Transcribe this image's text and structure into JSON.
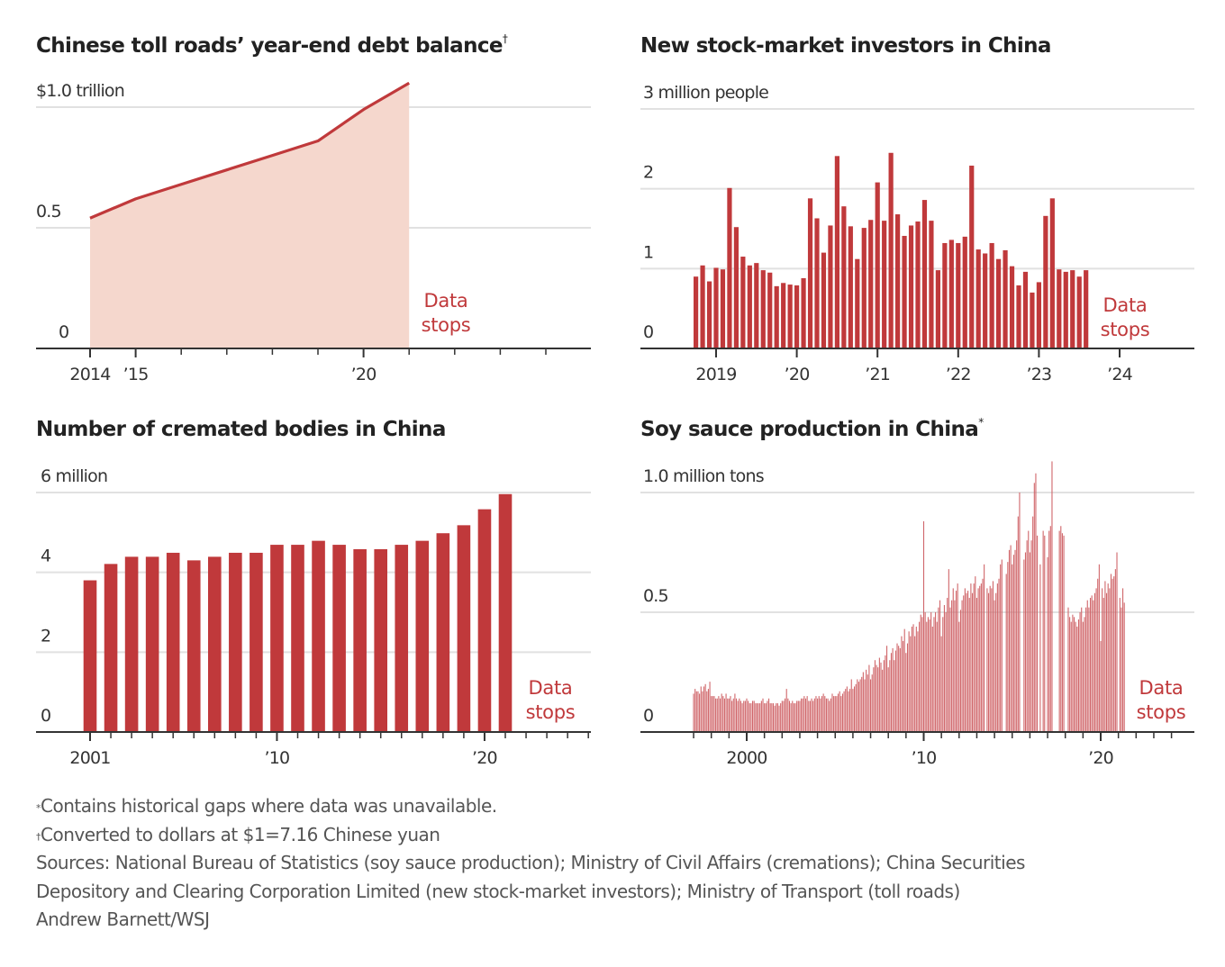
{
  "colors": {
    "bar": "#c0393b",
    "line": "#c0393b",
    "area": "#f5d7cd",
    "grid": "#e1e1e1",
    "axis": "#333333",
    "soy_bar": "#d0666a"
  },
  "chart_data": [
    {
      "id": "toll",
      "type": "area",
      "title": "Chinese toll roads’ year-end debt balance",
      "title_mark": "†",
      "unit_label": "$1.0 trillion",
      "ylabel": "",
      "xlabel": "",
      "ylim": [
        0,
        1.0
      ],
      "yticks": [
        {
          "v": 0,
          "label": "0"
        },
        {
          "v": 0.5,
          "label": "0.5"
        },
        {
          "v": 1.0,
          "label": "$1.0 trillion"
        }
      ],
      "xlim": [
        2014,
        2025
      ],
      "xticks": [
        {
          "v": 2014,
          "label": "2014"
        },
        {
          "v": 2015,
          "label": "’15"
        },
        {
          "v": 2020,
          "label": "’20"
        }
      ],
      "minor_ticks": [
        2016,
        2017,
        2018,
        2019,
        2021,
        2022,
        2023,
        2024
      ],
      "x": [
        2014,
        2015,
        2016,
        2017,
        2018,
        2019,
        2020,
        2021
      ],
      "values": [
        0.54,
        0.62,
        0.68,
        0.74,
        0.8,
        0.86,
        0.99,
        1.1
      ],
      "annotation": [
        "Data",
        "stops"
      ]
    },
    {
      "id": "stock",
      "type": "bar",
      "title": "New stock-market investors in China",
      "title_mark": "",
      "unit_label": "3 million people",
      "ylim": [
        0,
        3
      ],
      "yticks": [
        {
          "v": 0,
          "label": "0"
        },
        {
          "v": 1,
          "label": "1"
        },
        {
          "v": 2,
          "label": "2"
        },
        {
          "v": 3,
          "label": "3 million people"
        }
      ],
      "xlim": [
        2017.85,
        2024.95
      ],
      "xticks": [
        {
          "v": 2019,
          "label": "2019"
        },
        {
          "v": 2020,
          "label": "’20"
        },
        {
          "v": 2021,
          "label": "’21"
        },
        {
          "v": 2022,
          "label": "’22"
        },
        {
          "v": 2023,
          "label": "’23"
        },
        {
          "v": 2024,
          "label": "’24"
        }
      ],
      "start": "2018-10",
      "frequency": "monthly",
      "values": [
        0.9,
        1.04,
        0.84,
        1.01,
        0.99,
        2.01,
        1.52,
        1.15,
        1.04,
        1.07,
        0.98,
        0.95,
        0.78,
        0.82,
        0.8,
        0.79,
        0.88,
        1.88,
        1.63,
        1.2,
        1.54,
        2.41,
        1.78,
        1.53,
        1.12,
        1.51,
        1.61,
        2.08,
        1.6,
        2.45,
        1.68,
        1.41,
        1.54,
        1.59,
        1.86,
        1.6,
        0.98,
        1.32,
        1.36,
        1.32,
        1.4,
        2.29,
        1.24,
        1.19,
        1.32,
        1.12,
        1.23,
        1.03,
        0.79,
        0.96,
        0.7,
        0.83,
        1.66,
        1.88,
        0.99,
        0.96,
        0.98,
        0.9,
        0.98
      ],
      "annotation": [
        "Data",
        "stops"
      ]
    },
    {
      "id": "cremation",
      "type": "bar",
      "title": "Number of cremated bodies in China",
      "title_mark": "",
      "unit_label": "6 million",
      "ylim": [
        0,
        6
      ],
      "yticks": [
        {
          "v": 0,
          "label": "0"
        },
        {
          "v": 2,
          "label": "2"
        },
        {
          "v": 4,
          "label": "4"
        },
        {
          "v": 6,
          "label": "6 million"
        }
      ],
      "xlim": [
        1998.4,
        2025.2
      ],
      "xticks": [
        {
          "v": 2001,
          "label": "2001"
        },
        {
          "v": 2010,
          "label": "’10"
        },
        {
          "v": 2020,
          "label": "’20"
        }
      ],
      "x": [
        2001,
        2002,
        2003,
        2004,
        2005,
        2006,
        2007,
        2008,
        2009,
        2010,
        2011,
        2012,
        2013,
        2014,
        2015,
        2016,
        2017,
        2018,
        2019,
        2020,
        2021
      ],
      "values": [
        3.8,
        4.21,
        4.39,
        4.39,
        4.49,
        4.3,
        4.39,
        4.49,
        4.49,
        4.69,
        4.69,
        4.79,
        4.69,
        4.58,
        4.58,
        4.69,
        4.79,
        4.98,
        5.18,
        5.58,
        5.96
      ],
      "annotation": [
        "Data",
        "stops"
      ]
    },
    {
      "id": "soy",
      "type": "bar",
      "title": "Soy sauce production in China",
      "title_mark": "*",
      "unit_label": "1.0 million tons",
      "ylim": [
        0,
        1.0
      ],
      "yticks": [
        {
          "v": 0,
          "label": "0"
        },
        {
          "v": 0.5,
          "label": "0.5"
        },
        {
          "v": 1.0,
          "label": "1.0 million tons"
        }
      ],
      "xlim": [
        1994.0,
        2025.0
      ],
      "xticks": [
        {
          "v": 2000,
          "label": "2000"
        },
        {
          "v": 2010,
          "label": "’10"
        },
        {
          "v": 2020,
          "label": "’20"
        }
      ],
      "frequency": "monthly",
      "yearly_monthly_values": {
        "1997": [
          0.16,
          0.18,
          0.17,
          0.17,
          0.16,
          0.19,
          0.17,
          0.19,
          0.2,
          0.17,
          0.18,
          0.21
        ],
        "1998": [
          0.15,
          0.15,
          0.15,
          0.14,
          0.14,
          0.15,
          0.14,
          0.16,
          0.15,
          0.14,
          0.16,
          0.14
        ],
        "1999": [
          0.14,
          0.15,
          0.13,
          0.14,
          0.16,
          0.14,
          0.13,
          0.14,
          0.13,
          0.12,
          0.13,
          0.13
        ],
        "2000": [
          0.14,
          0.13,
          0.12,
          0.12,
          0.13,
          0.13,
          0.12,
          0.12,
          0.12,
          0.12,
          0.13,
          0.14
        ],
        "2001": [
          0.12,
          0.12,
          0.13,
          0.14,
          0.12,
          0.12,
          0.12,
          0.11,
          0.12,
          0.12,
          0.11,
          0.12
        ],
        "2002": [
          0.13,
          0.13,
          0.14,
          0.18,
          0.14,
          0.13,
          0.12,
          0.13,
          0.12,
          0.12,
          0.13,
          0.13
        ],
        "2003": [
          0.13,
          0.14,
          0.14,
          0.15,
          0.14,
          0.15,
          0.13,
          0.13,
          0.14,
          0.13,
          0.14,
          0.15
        ],
        "2004": [
          0.14,
          0.15,
          0.14,
          0.15,
          0.16,
          0.15,
          0.14,
          0.14,
          0.13,
          0.14,
          0.16,
          0.15
        ],
        "2005": [
          0.15,
          0.15,
          0.16,
          0.17,
          0.15,
          0.16,
          0.17,
          0.18,
          0.19,
          0.17,
          0.18,
          0.22
        ],
        "2006": [
          0.18,
          0.19,
          0.2,
          0.22,
          0.21,
          0.22,
          0.23,
          0.25,
          0.22,
          0.26,
          0.24,
          0.28
        ],
        "2007": [
          0.22,
          0.24,
          0.27,
          0.3,
          0.28,
          0.27,
          0.31,
          0.29,
          0.26,
          0.3,
          0.32,
          0.36
        ],
        "2008": [
          0.27,
          0.3,
          0.33,
          0.35,
          0.3,
          0.34,
          0.37,
          0.36,
          0.35,
          0.4,
          0.38,
          0.43
        ],
        "2009": [
          0.33,
          0.37,
          0.42,
          0.4,
          0.44,
          0.45,
          0.4,
          0.44,
          0.42,
          0.46,
          0.49,
          0.48
        ],
        "2010": [
          0.88,
          0.5,
          0.46,
          0.48,
          0.47,
          0.5,
          0.44,
          0.48,
          0.5,
          0.46,
          0.52,
          0.55
        ],
        "2011": [
          0.4,
          0.48,
          0.53,
          0.5,
          0.56,
          0.68,
          0.52,
          0.55,
          0.6,
          0.55,
          0.59,
          0.62
        ],
        "2012": [
          0.46,
          0.51,
          0.55,
          0.57,
          0.6,
          0.58,
          0.59,
          0.56,
          0.62,
          0.58,
          0.62,
          0.65
        ],
        "2013": [
          0.56,
          0.6,
          0.61,
          0.62,
          0.64,
          0.7,
          null,
          0.6,
          0.58,
          0.61,
          0.6,
          0.63
        ],
        "2014": [
          0.55,
          0.58,
          0.62,
          0.64,
          0.7,
          0.72,
          null,
          null,
          0.66,
          0.71,
          0.76,
          0.78
        ],
        "2015": [
          0.7,
          0.74,
          0.76,
          0.8,
          0.9,
          1.0,
          null,
          null,
          0.72,
          0.75,
          0.8,
          0.84
        ],
        "2016": [
          0.75,
          0.8,
          0.9,
          1.04,
          1.08,
          0.82,
          null,
          0.7,
          null,
          0.84,
          0.82,
          null
        ],
        "2017": [
          0.73,
          0.84,
          0.86,
          1.13,
          null,
          null,
          null,
          null,
          0.84,
          0.86,
          0.83,
          0.82
        ],
        "2018": [
          null,
          null,
          0.52,
          0.48,
          0.46,
          0.49,
          0.48,
          0.46,
          0.44,
          0.47,
          0.5,
          0.52
        ],
        "2019": [
          0.46,
          0.48,
          0.52,
          0.55,
          0.52,
          0.56,
          0.57,
          0.55,
          0.58,
          0.6,
          0.64,
          0.7
        ],
        "2020": [
          0.38,
          0.6,
          0.56,
          0.63,
          0.58,
          0.62,
          0.6,
          0.66,
          0.64,
          0.65,
          0.68,
          0.75
        ],
        "2021": [
          null,
          0.56,
          0.52,
          0.6,
          0.54,
          null,
          null,
          null,
          null,
          null,
          null,
          null
        ]
      },
      "annotation": [
        "Data",
        "stops"
      ]
    }
  ],
  "notes": {
    "gaps_mark": "*",
    "gaps": "Contains historical gaps where data was unavailable.",
    "fx_mark": "†",
    "fx": "Converted to dollars at $1=7.16 Chinese yuan",
    "sources_line1": "Sources: National Bureau of Statistics (soy sauce production); Ministry of Civil Affairs (cremations); China Securities",
    "sources_line2": "Depository and Clearing Corporation Limited (new stock-market investors); Ministry of Transport (toll roads)",
    "credit": "Andrew Barnett/WSJ"
  }
}
